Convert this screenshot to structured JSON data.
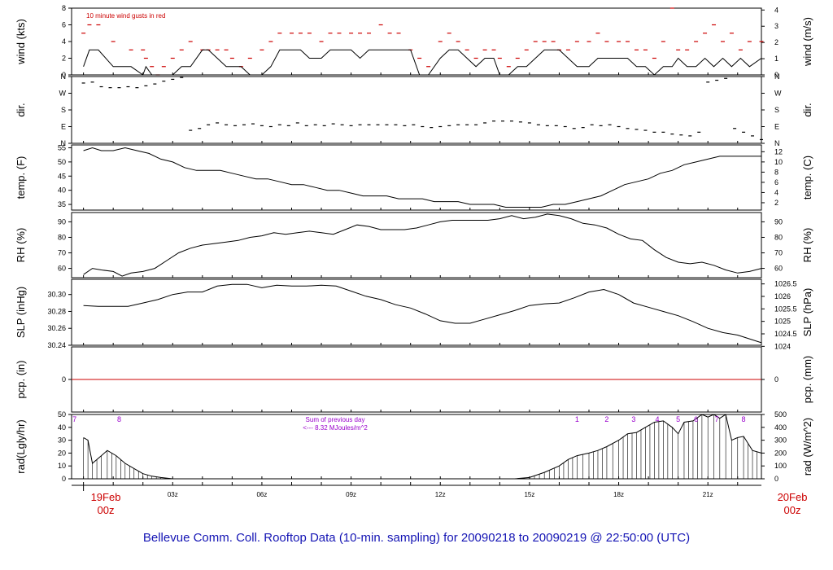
{
  "title": "Bellevue Comm. Coll. Rooftop Data (10-min. sampling) for 20090218  to  20090219 @ 22:50:00  (UTC)",
  "start_label": [
    "19Feb",
    "00z"
  ],
  "end_label": [
    "20Feb",
    "00z"
  ],
  "x_tick_labels": [
    "03z",
    "06z",
    "09z",
    "12z",
    "15z",
    "18z",
    "21z"
  ],
  "colors": {
    "gust": "#cc0000",
    "precip": "#cc0000",
    "radiation_labels": "#9900cc",
    "title": "#1414b4",
    "date_labels": "#cc0000"
  },
  "chart_data": [
    {
      "type": "line",
      "id": "wind",
      "ylabel_left": "wind (kts)",
      "ylabel_right": "wind (m/s)",
      "ylim": [
        0,
        8
      ],
      "left_ticks": [
        "0",
        "2",
        "4",
        "6",
        "8"
      ],
      "right_ticks": [
        "0",
        "1",
        "2",
        "3",
        "4"
      ],
      "annotation": "10  minute wind gusts in red",
      "x_hours": [
        0,
        0.2,
        0.5,
        1,
        1.6,
        2,
        2.1,
        2.3,
        2.5,
        2.7,
        3,
        3.3,
        3.6,
        4,
        4.2,
        4.5,
        4.8,
        5,
        5.3,
        5.6,
        6,
        6.3,
        6.6,
        7,
        7.3,
        7.6,
        8,
        8.3,
        8.6,
        9,
        9.3,
        9.6,
        10,
        10.3,
        10.6,
        11,
        11.3,
        11.6,
        12,
        12.3,
        12.6,
        12.9,
        13.2,
        13.5,
        13.8,
        14,
        14.3,
        14.6,
        14.9,
        15.2,
        15.5,
        15.8,
        16,
        16.3,
        16.6,
        17,
        17.3,
        17.6,
        18,
        18.3,
        18.6,
        18.9,
        19.2,
        19.5,
        19.8,
        20,
        20.3,
        20.6,
        20.9,
        21.2,
        21.5,
        21.8,
        22.1,
        22.4,
        22.8
      ],
      "speed_kts": [
        1,
        3,
        3,
        1,
        1,
        0,
        1,
        0,
        0,
        0,
        0,
        1,
        1,
        3,
        3,
        2,
        1,
        1,
        1,
        0,
        0,
        1,
        3,
        3,
        3,
        2,
        2,
        3,
        3,
        3,
        2,
        3,
        3,
        3,
        3,
        3,
        0,
        0,
        2,
        3,
        3,
        2,
        1,
        2,
        2,
        0,
        0,
        1,
        1,
        2,
        3,
        3,
        3,
        2,
        1,
        1,
        2,
        2,
        2,
        2,
        1,
        1,
        0,
        1,
        1,
        2,
        1,
        1,
        2,
        1,
        2,
        1,
        2,
        1,
        2
      ],
      "gust_kts": [
        5,
        6,
        6,
        4,
        3,
        3,
        2,
        1,
        0,
        1,
        2,
        3,
        4,
        3,
        3,
        3,
        3,
        2,
        1,
        2,
        3,
        4,
        5,
        5,
        5,
        5,
        4,
        5,
        5,
        5,
        5,
        5,
        6,
        5,
        5,
        3,
        2,
        1,
        4,
        5,
        4,
        3,
        2,
        3,
        3,
        2,
        1,
        2,
        3,
        4,
        4,
        4,
        3,
        3,
        4,
        4,
        5,
        4,
        4,
        4,
        3,
        3,
        2,
        4,
        8,
        3,
        3,
        4,
        5,
        6,
        4,
        5,
        3,
        4,
        4
      ]
    },
    {
      "type": "scatter",
      "id": "direction",
      "ylabel_left": "dir.",
      "ylabel_right": "dir.",
      "ylim": [
        0,
        360
      ],
      "left_ticks": [
        "N",
        "E",
        "S",
        "W",
        "N"
      ],
      "right_ticks": [
        "N",
        "E",
        "S",
        "W",
        "N"
      ],
      "x_hours": [
        0,
        0.3,
        0.6,
        0.9,
        1.2,
        1.5,
        1.8,
        2.1,
        2.4,
        2.7,
        3.0,
        3.3,
        3.6,
        3.9,
        4.2,
        4.5,
        4.8,
        5.1,
        5.4,
        5.7,
        6.0,
        6.3,
        6.6,
        6.9,
        7.2,
        7.5,
        7.8,
        8.1,
        8.4,
        8.7,
        9.0,
        9.3,
        9.6,
        9.9,
        10.2,
        10.5,
        10.8,
        11.1,
        11.4,
        11.7,
        12.0,
        12.3,
        12.6,
        12.9,
        13.2,
        13.5,
        13.8,
        14.1,
        14.4,
        14.7,
        15.0,
        15.3,
        15.6,
        15.9,
        16.2,
        16.5,
        16.8,
        17.1,
        17.4,
        17.7,
        18.0,
        18.3,
        18.6,
        18.9,
        19.2,
        19.5,
        19.8,
        20.1,
        20.4,
        20.7,
        21.0,
        21.3,
        21.6,
        21.9,
        22.2,
        22.5,
        22.8
      ],
      "dir_deg": [
        325,
        330,
        305,
        300,
        300,
        305,
        300,
        310,
        320,
        335,
        345,
        355,
        70,
        80,
        100,
        110,
        100,
        95,
        100,
        105,
        95,
        90,
        100,
        95,
        110,
        95,
        100,
        95,
        105,
        100,
        95,
        100,
        100,
        100,
        100,
        100,
        95,
        100,
        90,
        85,
        90,
        95,
        100,
        100,
        100,
        110,
        120,
        120,
        120,
        115,
        110,
        100,
        95,
        95,
        90,
        80,
        85,
        100,
        95,
        100,
        90,
        80,
        75,
        70,
        60,
        60,
        50,
        45,
        40,
        60,
        330,
        340,
        350,
        80,
        60,
        40,
        20
      ]
    },
    {
      "type": "line",
      "id": "temperature",
      "ylabel_left": "temp. (F)",
      "ylabel_right": "temp. (C)",
      "ylim": [
        33,
        56
      ],
      "left_ticks": [
        "35",
        "40",
        "45",
        "50",
        "55"
      ],
      "right_ticks": [
        "2",
        "4",
        "6",
        "8",
        "10",
        "12"
      ],
      "x_hours": [
        0,
        0.3,
        0.6,
        1,
        1.4,
        1.8,
        2.2,
        2.6,
        3,
        3.4,
        3.8,
        4.2,
        4.6,
        5,
        5.4,
        5.8,
        6.2,
        6.6,
        7,
        7.4,
        7.8,
        8.2,
        8.6,
        9,
        9.4,
        9.8,
        10.2,
        10.6,
        11,
        11.4,
        11.8,
        12.2,
        12.6,
        13,
        13.4,
        13.8,
        14.2,
        14.6,
        15,
        15.4,
        15.8,
        16.2,
        16.6,
        17,
        17.4,
        17.8,
        18.2,
        18.6,
        19,
        19.4,
        19.8,
        20.2,
        20.6,
        21,
        21.4,
        21.8,
        22.2,
        22.8
      ],
      "values_f": [
        54,
        55,
        54,
        54,
        55,
        54,
        53,
        51,
        50,
        48,
        47,
        47,
        47,
        46,
        45,
        44,
        44,
        43,
        42,
        42,
        41,
        40,
        40,
        39,
        38,
        38,
        38,
        37,
        37,
        37,
        36,
        36,
        36,
        35,
        35,
        35,
        34,
        34,
        34,
        34,
        35,
        35,
        36,
        37,
        38,
        40,
        42,
        43,
        44,
        46,
        47,
        49,
        50,
        51,
        52,
        52,
        52,
        52
      ]
    },
    {
      "type": "line",
      "id": "humidity",
      "ylabel_left": "RH (%)",
      "ylabel_right": "RH (%)",
      "ylim": [
        54,
        96
      ],
      "left_ticks": [
        "60",
        "70",
        "80",
        "90"
      ],
      "right_ticks": [
        "60",
        "70",
        "80",
        "90"
      ],
      "x_hours": [
        0,
        0.3,
        0.6,
        1,
        1.3,
        1.6,
        2,
        2.4,
        2.8,
        3.2,
        3.6,
        4,
        4.4,
        4.8,
        5.2,
        5.6,
        6,
        6.4,
        6.8,
        7.2,
        7.6,
        8,
        8.4,
        8.8,
        9.2,
        9.6,
        10,
        10.4,
        10.8,
        11.2,
        11.6,
        12,
        12.4,
        12.8,
        13.2,
        13.6,
        14,
        14.4,
        14.8,
        15.2,
        15.6,
        16,
        16.4,
        16.8,
        17.2,
        17.6,
        18,
        18.4,
        18.8,
        19.2,
        19.6,
        20,
        20.4,
        20.8,
        21.2,
        21.6,
        22,
        22.4,
        22.8
      ],
      "values_pct": [
        56,
        60,
        59,
        58,
        55,
        57,
        58,
        60,
        65,
        70,
        73,
        75,
        76,
        77,
        78,
        80,
        81,
        83,
        82,
        83,
        84,
        83,
        82,
        85,
        88,
        87,
        85,
        85,
        85,
        86,
        88,
        90,
        91,
        91,
        91,
        91,
        92,
        94,
        92,
        93,
        95,
        94,
        92,
        89,
        88,
        86,
        82,
        79,
        78,
        72,
        67,
        64,
        63,
        64,
        62,
        59,
        57,
        58,
        60
      ]
    },
    {
      "type": "line",
      "id": "pressure",
      "ylabel_left": "SLP (inHg)",
      "ylabel_right": "SLP (hPa)",
      "ylim": [
        30.24,
        30.318
      ],
      "left_ticks": [
        "30.24",
        "30.26",
        "30.28",
        "30.30"
      ],
      "right_ticks": [
        "1024",
        "1024.5",
        "1025",
        "1025.5",
        "1026",
        "1026.5"
      ],
      "x_hours": [
        0,
        0.5,
        1,
        1.5,
        2,
        2.5,
        3,
        3.5,
        4,
        4.5,
        5,
        5.5,
        6,
        6.5,
        7,
        7.5,
        8,
        8.5,
        9,
        9.5,
        10,
        10.5,
        11,
        11.5,
        12,
        12.5,
        13,
        13.5,
        14,
        14.5,
        15,
        15.5,
        16,
        16.5,
        17,
        17.5,
        18,
        18.5,
        19,
        19.5,
        20,
        20.5,
        21,
        21.5,
        22,
        22.8
      ],
      "values_inhg": [
        30.287,
        30.286,
        30.286,
        30.286,
        30.29,
        30.294,
        30.3,
        30.303,
        30.303,
        30.31,
        30.312,
        30.312,
        30.308,
        30.311,
        30.31,
        30.31,
        30.311,
        30.31,
        30.304,
        30.298,
        30.294,
        30.288,
        30.284,
        30.277,
        30.269,
        30.266,
        30.266,
        30.271,
        30.276,
        30.281,
        30.287,
        30.289,
        30.29,
        30.296,
        30.303,
        30.306,
        30.3,
        30.29,
        30.285,
        30.28,
        30.275,
        30.268,
        30.26,
        30.255,
        30.252,
        30.243
      ]
    },
    {
      "type": "line",
      "id": "precipitation",
      "ylabel_left": "pcp. (in)",
      "ylabel_right": "pcp. (mm)",
      "ylim": [
        -1,
        1
      ],
      "left_ticks": [
        "0"
      ],
      "right_ticks": [
        "0"
      ],
      "x_hours": [
        0,
        22.8
      ],
      "values_in": [
        0,
        0
      ]
    },
    {
      "type": "area",
      "id": "radiation",
      "ylabel_left": "rad(Lgly/hr)",
      "ylabel_right": "rad (W/m^2)",
      "ylim": [
        0,
        50
      ],
      "left_ticks": [
        "0",
        "10",
        "20",
        "30",
        "40",
        "50"
      ],
      "right_ticks": [
        "0",
        "100",
        "200",
        "300",
        "400",
        "500"
      ],
      "annotation_line1": "Sum of previous day",
      "annotation_line2": "<--- 8.32 MJoules/m^2",
      "top_hour_labels": [
        "7",
        "8",
        "1",
        "2",
        "3",
        "4",
        "5",
        "6",
        "7",
        "8"
      ],
      "x_hours": [
        0,
        0.15,
        0.3,
        0.6,
        0.8,
        1.1,
        1.4,
        1.7,
        2.0,
        2.3,
        2.6,
        3.0,
        3.3,
        3.6,
        14.5,
        15,
        15.5,
        16,
        16.3,
        16.6,
        17,
        17.3,
        17.6,
        18,
        18.3,
        18.6,
        18.9,
        19.2,
        19.5,
        19.8,
        20.0,
        20.2,
        20.5,
        20.8,
        21.0,
        21.2,
        21.4,
        21.6,
        21.8,
        22.0,
        22.2,
        22.5,
        22.8
      ],
      "values_lgly": [
        32,
        30,
        12,
        18,
        22,
        18,
        12,
        8,
        4,
        2,
        1,
        0,
        0,
        0,
        0,
        1,
        5,
        10,
        15,
        18,
        20,
        22,
        25,
        30,
        35,
        36,
        40,
        44,
        45,
        40,
        35,
        44,
        45,
        50,
        48,
        50,
        47,
        50,
        30,
        32,
        33,
        22,
        20
      ]
    }
  ]
}
